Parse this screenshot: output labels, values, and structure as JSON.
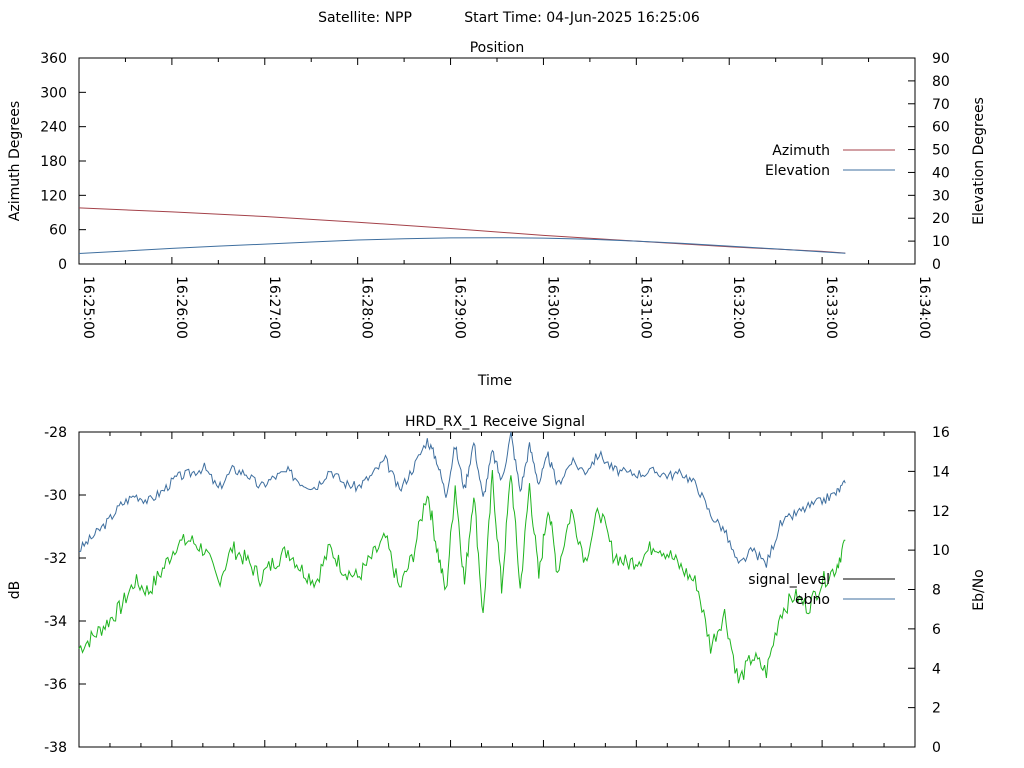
{
  "header": {
    "satellite_label": "Satellite: NPP",
    "start_time_label": "Start Time: 04-Jun-2025 16:25:06"
  },
  "colors": {
    "azimuth": "#a4424a",
    "elevation": "#3f6f9f",
    "signal_level": "#000000",
    "ebno": "#3f6f9f",
    "green_trace": "#1fb41f"
  },
  "chart_data": [
    {
      "type": "line",
      "title": "Position",
      "xlabel": "Time",
      "ylabel": "Azimuth Degrees",
      "y2label": "Elevation Degrees",
      "xlim": [
        "16:25:00",
        "16:34:00"
      ],
      "ylim": [
        0,
        360
      ],
      "y2lim": [
        0,
        90
      ],
      "xticks": [
        "16:25:00",
        "16:26:00",
        "16:27:00",
        "16:28:00",
        "16:29:00",
        "16:30:00",
        "16:31:00",
        "16:32:00",
        "16:33:00",
        "16:34:00"
      ],
      "yticks": [
        "0",
        "60",
        "120",
        "180",
        "240",
        "300",
        "360"
      ],
      "y2ticks": [
        "0",
        "10",
        "20",
        "30",
        "40",
        "50",
        "60",
        "70",
        "80",
        "90"
      ],
      "legend_position": "right",
      "series": [
        {
          "name": "Azimuth",
          "axis": "y",
          "x_minutes": [
            0,
            1,
            2,
            3,
            4,
            5,
            6,
            7,
            8,
            8.25
          ],
          "values": [
            98,
            91,
            83,
            73,
            62,
            50,
            40,
            30,
            22,
            19
          ]
        },
        {
          "name": "Elevation",
          "axis": "y2",
          "x_minutes": [
            0,
            0.5,
            1,
            1.5,
            2,
            2.5,
            3,
            3.5,
            4,
            4.5,
            5,
            5.5,
            6,
            6.5,
            7,
            7.5,
            8,
            8.25
          ],
          "values": [
            4.6,
            5.7,
            6.8,
            7.8,
            8.7,
            9.6,
            10.5,
            11.0,
            11.4,
            11.5,
            11.3,
            10.8,
            10.0,
            9.0,
            7.8,
            6.6,
            5.3,
            4.7
          ]
        }
      ]
    },
    {
      "type": "line",
      "title": "HRD_RX_1 Receive Signal",
      "ylabel": "dB",
      "y2label": "Eb/No",
      "ylim": [
        -38,
        -28
      ],
      "y2lim": [
        0,
        16
      ],
      "yticks": [
        "-28",
        "-30",
        "-32",
        "-34",
        "-36",
        "-38"
      ],
      "y2ticks": [
        "0",
        "2",
        "4",
        "6",
        "8",
        "10",
        "12",
        "14",
        "16"
      ],
      "legend_position": "right",
      "x_minutes_range": [
        0,
        9
      ],
      "series": [
        {
          "name": "signal_level",
          "axis": "y",
          "x_minutes": [],
          "values": []
        },
        {
          "name": "ebno",
          "axis": "y2",
          "x_minutes": [
            0,
            0.15,
            0.3,
            0.45,
            0.6,
            0.75,
            0.9,
            1.05,
            1.2,
            1.35,
            1.5,
            1.65,
            1.8,
            1.95,
            2.1,
            2.25,
            2.4,
            2.55,
            2.7,
            2.85,
            3.0,
            3.15,
            3.3,
            3.45,
            3.6,
            3.75,
            3.85,
            3.95,
            4.05,
            4.15,
            4.25,
            4.35,
            4.45,
            4.55,
            4.65,
            4.75,
            4.85,
            4.95,
            5.05,
            5.15,
            5.3,
            5.45,
            5.6,
            5.75,
            5.9,
            6.05,
            6.2,
            6.35,
            6.5,
            6.65,
            6.8,
            6.95,
            7.1,
            7.25,
            7.4,
            7.55,
            7.7,
            7.85,
            8.0,
            8.15,
            8.25
          ],
          "values": [
            10.0,
            10.7,
            11.4,
            12.3,
            12.8,
            12.5,
            13.0,
            13.7,
            13.9,
            14.2,
            13.1,
            14.1,
            13.9,
            13.2,
            13.7,
            14.0,
            13.4,
            13.2,
            14.1,
            13.4,
            13.2,
            13.8,
            14.6,
            13.0,
            14.2,
            15.6,
            14.6,
            12.8,
            15.3,
            13.1,
            15.5,
            12.6,
            15.0,
            13.5,
            15.9,
            13.0,
            15.3,
            13.4,
            14.8,
            13.3,
            14.5,
            14.0,
            14.9,
            14.1,
            13.9,
            13.9,
            14.0,
            13.8,
            13.9,
            13.3,
            11.8,
            11.0,
            9.2,
            10.0,
            9.3,
            11.3,
            11.8,
            12.2,
            12.5,
            12.9,
            13.4
          ]
        },
        {
          "name": "",
          "axis": "y2",
          "x_minutes": [
            0,
            0.15,
            0.3,
            0.45,
            0.6,
            0.75,
            0.9,
            1.05,
            1.2,
            1.35,
            1.5,
            1.65,
            1.8,
            1.95,
            2.1,
            2.25,
            2.4,
            2.55,
            2.7,
            2.85,
            3.0,
            3.15,
            3.3,
            3.45,
            3.6,
            3.75,
            3.85,
            3.95,
            4.05,
            4.15,
            4.25,
            4.35,
            4.45,
            4.55,
            4.65,
            4.75,
            4.85,
            4.95,
            5.05,
            5.15,
            5.3,
            5.45,
            5.6,
            5.75,
            5.9,
            6.05,
            6.2,
            6.35,
            6.5,
            6.65,
            6.8,
            6.95,
            7.1,
            7.25,
            7.4,
            7.55,
            7.7,
            7.85,
            8.0,
            8.15,
            8.25
          ],
          "values": [
            5.0,
            5.6,
            6.3,
            7.1,
            8.4,
            7.9,
            9.0,
            10.3,
            10.5,
            10.0,
            8.4,
            10.1,
            9.5,
            8.6,
            9.4,
            10.0,
            9.0,
            8.4,
            10.1,
            9.0,
            8.6,
            9.6,
            10.6,
            8.0,
            9.8,
            13.0,
            10.2,
            7.8,
            13.3,
            8.3,
            13.0,
            6.6,
            13.8,
            8.0,
            14.0,
            8.0,
            13.3,
            8.6,
            12.3,
            8.9,
            12.0,
            9.5,
            12.1,
            9.8,
            9.3,
            9.6,
            10.3,
            9.8,
            9.0,
            8.3,
            5.1,
            6.8,
            3.3,
            4.6,
            3.8,
            6.8,
            7.7,
            7.1,
            8.4,
            9.1,
            10.5
          ]
        }
      ]
    }
  ]
}
